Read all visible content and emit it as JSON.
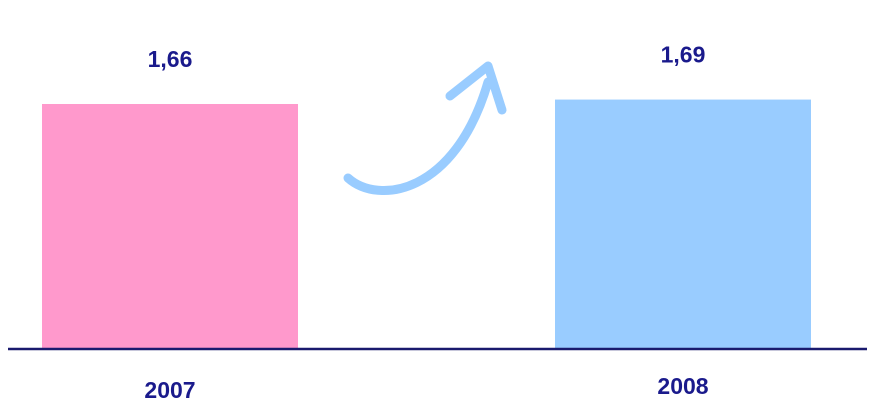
{
  "chart_data": {
    "type": "bar",
    "categories": [
      "2007",
      "2008"
    ],
    "values": [
      1.66,
      1.69
    ],
    "value_labels": [
      "1,66",
      "1,69"
    ],
    "title": "",
    "xlabel": "",
    "ylabel": "",
    "colors": {
      "bars": [
        "#ff99cc",
        "#99ccff"
      ],
      "labels": "#1a1a8c",
      "axis": "#1a1a6e",
      "arrow": "#99ccff"
    },
    "arrow_icon": "curved-up-arrow-icon",
    "grid": false,
    "legend": "none"
  }
}
